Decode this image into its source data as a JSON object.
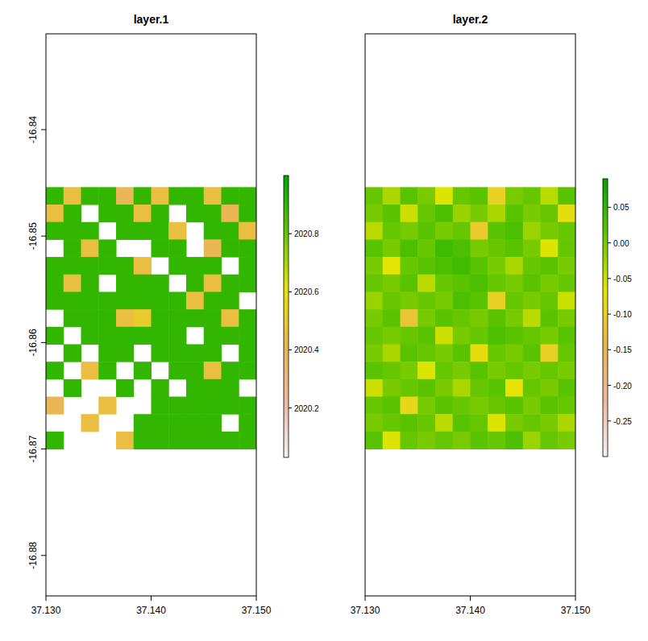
{
  "chart_data": [
    {
      "type": "heatmap",
      "title": "layer.1",
      "xlim": [
        37.13,
        37.15
      ],
      "xticks": [
        {
          "value": 37.13,
          "label": "37.130"
        },
        {
          "value": 37.14,
          "label": "37.140"
        },
        {
          "value": 37.15,
          "label": "37.150"
        }
      ],
      "ylim": [
        -16.8838,
        -16.831
      ],
      "yticks": [
        -16.84,
        -16.85,
        -16.86,
        -16.87,
        -16.88
      ],
      "extent": {
        "xmin": 37.13,
        "xmax": 37.15,
        "ymin": -16.87,
        "ymax": -16.8454
      },
      "cells": [
        [
          2020.9,
          2020.45,
          2020.9,
          2020.9,
          2020.4,
          2020.9,
          2020.45,
          2020.9,
          2020.9,
          2020.45,
          2020.9,
          2020.9
        ],
        [
          2020.45,
          2020.9,
          null,
          2020.9,
          2020.9,
          2020.45,
          2020.9,
          null,
          2020.9,
          2020.9,
          2020.4,
          2020.9
        ],
        [
          2020.9,
          2020.9,
          2020.9,
          null,
          2020.9,
          2020.9,
          2020.9,
          2020.45,
          null,
          2020.9,
          2020.9,
          2020.45
        ],
        [
          null,
          2020.9,
          2020.45,
          2020.9,
          null,
          null,
          2020.9,
          2020.9,
          null,
          2020.4,
          2020.9,
          2020.9
        ],
        [
          2020.9,
          2020.9,
          2020.9,
          2020.9,
          2020.9,
          2020.45,
          null,
          2020.9,
          2020.9,
          2020.9,
          null,
          2020.9
        ],
        [
          2020.9,
          2020.45,
          2020.9,
          null,
          2020.9,
          2020.9,
          2020.9,
          null,
          2020.9,
          2020.45,
          2020.9,
          2020.9
        ],
        [
          2020.9,
          2020.9,
          2020.9,
          2020.9,
          2020.9,
          2020.9,
          2020.9,
          2020.9,
          2020.45,
          2020.9,
          2020.9,
          null
        ],
        [
          null,
          2020.9,
          2020.9,
          2020.9,
          2020.45,
          2020.5,
          2020.9,
          2020.9,
          2020.9,
          2020.9,
          2020.45,
          2020.9
        ],
        [
          2020.9,
          null,
          2020.9,
          2020.9,
          2020.9,
          2020.9,
          2020.9,
          2020.9,
          null,
          2020.9,
          2020.9,
          2020.9
        ],
        [
          null,
          2020.9,
          null,
          2020.9,
          2020.9,
          null,
          2020.9,
          2020.9,
          2020.9,
          2020.9,
          null,
          2020.9
        ],
        [
          2020.9,
          null,
          2020.45,
          2020.9,
          null,
          2020.9,
          null,
          2020.9,
          2020.9,
          2020.45,
          2020.9,
          2020.9
        ],
        [
          null,
          2020.9,
          null,
          null,
          2020.9,
          null,
          2020.9,
          null,
          2020.9,
          2020.9,
          2020.9,
          null
        ],
        [
          2020.4,
          null,
          null,
          2020.45,
          null,
          null,
          2020.9,
          2020.9,
          2020.9,
          2020.9,
          2020.9,
          2020.9
        ],
        [
          null,
          null,
          2020.45,
          null,
          null,
          2020.9,
          2020.9,
          2020.9,
          2020.9,
          2020.9,
          null,
          2020.9
        ],
        [
          2020.9,
          null,
          null,
          null,
          2020.45,
          2020.9,
          2020.9,
          2020.9,
          2020.9,
          2020.9,
          2020.9,
          2020.9
        ]
      ],
      "colorbar_range": [
        2020.03,
        2021.0
      ],
      "colorbar_ticks": [
        2020.2,
        2020.4,
        2020.6,
        2020.8
      ]
    },
    {
      "type": "heatmap",
      "title": "layer.2",
      "tick_labels": "x",
      "xlim": [
        37.13,
        37.15
      ],
      "xticks": [
        {
          "value": 37.13,
          "label": "37.130"
        },
        {
          "value": 37.14,
          "label": "37.140"
        },
        {
          "value": 37.15,
          "label": "37.150"
        }
      ],
      "ylim": [
        -16.8838,
        -16.831
      ],
      "extent": {
        "xmin": 37.13,
        "xmax": 37.15,
        "ymin": -16.87,
        "ymax": -16.8454
      },
      "cells": [
        [
          0.01,
          -0.03,
          0.02,
          0.0,
          -0.06,
          0.01,
          0.02,
          -0.1,
          0.0,
          0.01,
          -0.04,
          0.02
        ],
        [
          0.0,
          0.02,
          -0.05,
          0.01,
          0.03,
          -0.02,
          0.0,
          -0.03,
          0.02,
          0.0,
          0.01,
          -0.08
        ],
        [
          -0.04,
          0.01,
          0.0,
          0.02,
          0.0,
          0.01,
          -0.11,
          0.02,
          0.03,
          -0.02,
          0.0,
          0.01
        ],
        [
          0.02,
          0.0,
          0.03,
          0.01,
          0.04,
          0.03,
          0.0,
          0.01,
          0.02,
          0.0,
          -0.06,
          0.01
        ],
        [
          0.0,
          -0.07,
          0.01,
          0.02,
          0.03,
          0.04,
          0.02,
          0.0,
          -0.03,
          0.01,
          0.02,
          0.0
        ],
        [
          0.01,
          0.0,
          0.02,
          -0.04,
          0.01,
          0.02,
          0.03,
          0.01,
          0.0,
          0.02,
          0.0,
          0.01
        ],
        [
          -0.02,
          0.01,
          0.0,
          0.01,
          0.0,
          0.03,
          0.02,
          -0.1,
          0.01,
          0.0,
          0.01,
          -0.05
        ],
        [
          0.0,
          0.02,
          -0.12,
          0.0,
          0.02,
          0.01,
          0.0,
          0.02,
          0.0,
          -0.04,
          0.02,
          0.0
        ],
        [
          0.01,
          0.0,
          0.01,
          0.02,
          -0.05,
          0.0,
          0.01,
          0.03,
          0.02,
          0.01,
          0.0,
          0.02
        ],
        [
          0.0,
          -0.03,
          0.02,
          0.01,
          0.0,
          0.02,
          -0.08,
          0.01,
          0.0,
          0.02,
          -0.1,
          0.01
        ],
        [
          0.02,
          0.01,
          0.0,
          -0.06,
          0.01,
          0.0,
          0.02,
          0.0,
          0.01,
          0.0,
          0.01,
          0.0
        ],
        [
          -0.05,
          0.0,
          0.01,
          0.02,
          0.0,
          -0.03,
          0.01,
          0.02,
          -0.07,
          0.01,
          0.0,
          0.02
        ],
        [
          0.01,
          0.02,
          -0.09,
          0.0,
          0.02,
          0.01,
          0.0,
          0.01,
          0.02,
          0.0,
          0.02,
          0.01
        ],
        [
          0.0,
          0.01,
          0.02,
          0.01,
          -0.04,
          0.02,
          0.01,
          -0.06,
          0.0,
          0.01,
          0.0,
          -0.03
        ],
        [
          0.02,
          -0.06,
          0.01,
          0.0,
          0.01,
          0.0,
          0.02,
          0.01,
          0.03,
          -0.02,
          0.01,
          0.0
        ]
      ],
      "colorbar_range": [
        -0.3,
        0.09
      ],
      "colorbar_ticks": [
        {
          "value": 0.05,
          "label": "0.05"
        },
        {
          "value": 0,
          "label": "0.00"
        },
        {
          "value": -0.05,
          "label": "-0.05"
        },
        {
          "value": -0.1,
          "label": "-0.10"
        },
        {
          "value": -0.15,
          "label": "-0.15"
        },
        {
          "value": -0.2,
          "label": "-0.20"
        },
        {
          "value": -0.25,
          "label": "-0.25"
        }
      ]
    }
  ]
}
